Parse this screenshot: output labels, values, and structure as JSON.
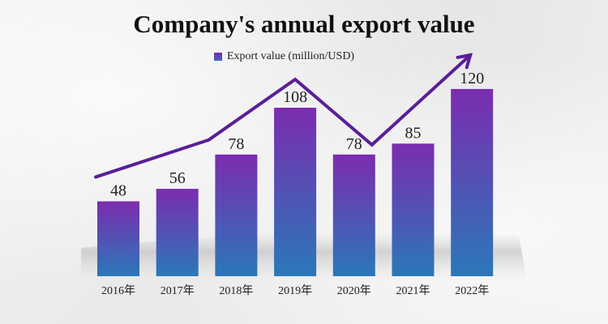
{
  "chart_data": {
    "type": "bar",
    "title": "Company's annual export value",
    "legend": {
      "label": "Export value (million/USD)",
      "position": "top-center"
    },
    "categories": [
      "2016年",
      "2017年",
      "2018年",
      "2019年",
      "2020年",
      "2021年",
      "2022年"
    ],
    "series": [
      {
        "name": "Export value (million/USD)",
        "values": [
          48,
          56,
          78,
          108,
          78,
          85,
          120
        ]
      }
    ],
    "data_labels": [
      "48",
      "56",
      "78",
      "108",
      "78",
      "85",
      "120"
    ],
    "ylim": [
      0,
      120
    ],
    "grid": false,
    "xlabel": "",
    "ylabel": "",
    "trend_arrow": "decorative trend line rising over the bars with an upward arrow at the end",
    "colors": {
      "bar_top": "#7b2cb0",
      "bar_bottom": "#2a78b8",
      "trend_line": "#5a1f96"
    }
  }
}
